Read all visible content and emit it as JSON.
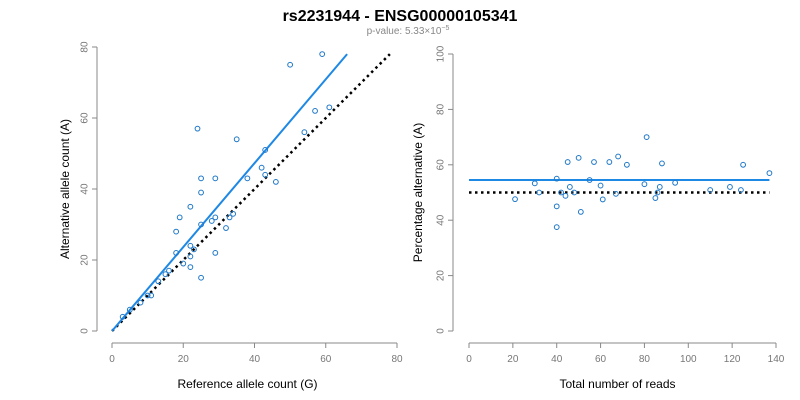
{
  "figure": {
    "title": "rs2231944 - ENSG00000105341",
    "pvalue_label": "p-value: ",
    "pvalue_mantissa": "5.33×10",
    "pvalue_exponent": "−5"
  },
  "colors": {
    "fit_line": "#1e88e5",
    "points": "#1f78c8",
    "reference_line": "#000000",
    "axis": "#888888",
    "tick_text": "#777777"
  },
  "chart_data": [
    {
      "type": "scatter",
      "title": "",
      "xlabel": "Reference allele count (G)",
      "ylabel": "Alternative allele count (A)",
      "xlim": [
        0,
        80
      ],
      "ylim": [
        0,
        80
      ],
      "xticks": [
        0,
        20,
        40,
        60,
        80
      ],
      "yticks": [
        0,
        20,
        40,
        60,
        80
      ],
      "grid": false,
      "points": [
        [
          3,
          4
        ],
        [
          5,
          6
        ],
        [
          8,
          8
        ],
        [
          10,
          10
        ],
        [
          11,
          10
        ],
        [
          13,
          14
        ],
        [
          15,
          16
        ],
        [
          16,
          17
        ],
        [
          18,
          22
        ],
        [
          18,
          28
        ],
        [
          19,
          32
        ],
        [
          20,
          19
        ],
        [
          22,
          21
        ],
        [
          22,
          24
        ],
        [
          22,
          18
        ],
        [
          23,
          23
        ],
        [
          22,
          35
        ],
        [
          24,
          57
        ],
        [
          25,
          15
        ],
        [
          25,
          30
        ],
        [
          25,
          39
        ],
        [
          25,
          43
        ],
        [
          28,
          31
        ],
        [
          29,
          22
        ],
        [
          29,
          43
        ],
        [
          29,
          32
        ],
        [
          32,
          29
        ],
        [
          33,
          32
        ],
        [
          34,
          33
        ],
        [
          35,
          54
        ],
        [
          38,
          43
        ],
        [
          42,
          46
        ],
        [
          43,
          51
        ],
        [
          43,
          44
        ],
        [
          46,
          42
        ],
        [
          50,
          75
        ],
        [
          54,
          56
        ],
        [
          57,
          62
        ],
        [
          59,
          78
        ],
        [
          61,
          63
        ]
      ],
      "fit_line": {
        "x": [
          0,
          66
        ],
        "y": [
          0,
          78
        ]
      },
      "reference_line": {
        "x": [
          0,
          78
        ],
        "y": [
          0,
          78
        ]
      }
    },
    {
      "type": "scatter",
      "title": "",
      "xlabel": "Total number of reads",
      "ylabel": "Percentage alternative (A)",
      "xlim": [
        0,
        140
      ],
      "ylim": [
        0,
        100
      ],
      "xticks": [
        0,
        20,
        40,
        60,
        80,
        100,
        120,
        140
      ],
      "yticks": [
        0,
        20,
        40,
        60,
        80,
        100
      ],
      "grid": false,
      "points": [
        [
          21,
          47.6
        ],
        [
          30,
          53.3
        ],
        [
          32,
          50
        ],
        [
          40,
          55
        ],
        [
          40,
          45
        ],
        [
          40,
          37.5
        ],
        [
          42,
          50
        ],
        [
          44,
          48.8
        ],
        [
          45,
          61
        ],
        [
          46,
          52
        ],
        [
          48,
          50
        ],
        [
          50,
          62.5
        ],
        [
          51,
          43
        ],
        [
          55,
          54.5
        ],
        [
          57,
          61
        ],
        [
          60,
          52.5
        ],
        [
          61,
          47.5
        ],
        [
          64,
          61
        ],
        [
          67,
          49.5
        ],
        [
          68,
          63
        ],
        [
          72,
          60
        ],
        [
          80,
          53
        ],
        [
          81,
          70
        ],
        [
          85,
          48
        ],
        [
          86,
          50
        ],
        [
          87,
          52
        ],
        [
          88,
          60.5
        ],
        [
          94,
          53.5
        ],
        [
          110,
          50.9
        ],
        [
          119,
          52
        ],
        [
          124,
          50.9
        ],
        [
          125,
          60
        ],
        [
          137,
          57
        ]
      ],
      "fit_line": {
        "x": [
          0,
          137
        ],
        "y": [
          54.5,
          54.5
        ]
      },
      "reference_line": {
        "x": [
          0,
          137
        ],
        "y": [
          50,
          50
        ]
      }
    }
  ]
}
